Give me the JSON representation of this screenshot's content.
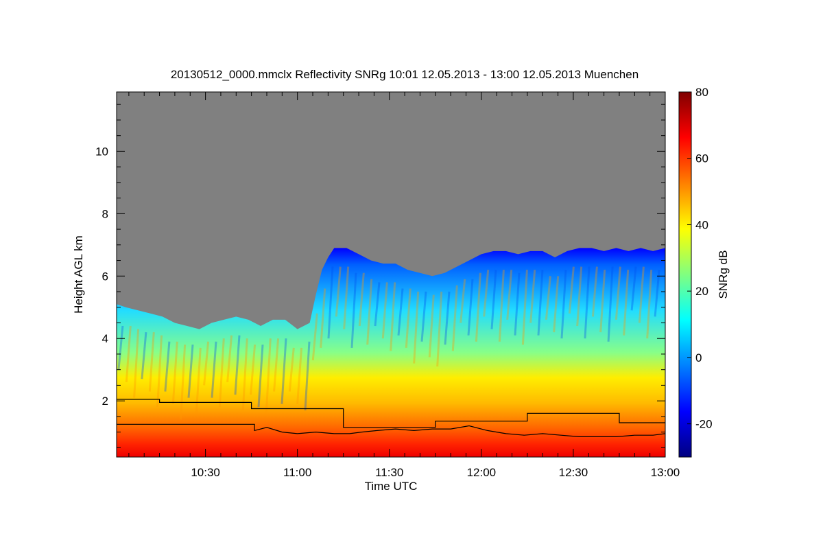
{
  "chart_data": {
    "type": "heatmap",
    "title": "20130512_0000.mmclx Reflectivity SNRg   10:01 12.05.2013 - 13:00 12.05.2013 Muenchen",
    "xlabel": "Time UTC",
    "ylabel": "Height AGL km",
    "colorbar_label": "SNRg dB",
    "x_range": [
      "10:01",
      "13:00"
    ],
    "xlim_minutes": [
      601,
      780
    ],
    "ylim": [
      0.2,
      11.9
    ],
    "x_ticks": [
      {
        "label": "10:30",
        "minutes": 630
      },
      {
        "label": "11:00",
        "minutes": 660
      },
      {
        "label": "11:30",
        "minutes": 690
      },
      {
        "label": "12:00",
        "minutes": 720
      },
      {
        "label": "12:30",
        "minutes": 750
      },
      {
        "label": "13:00",
        "minutes": 780
      }
    ],
    "y_ticks": [
      {
        "label": "2",
        "value": 2
      },
      {
        "label": "4",
        "value": 4
      },
      {
        "label": "6",
        "value": 6
      },
      {
        "label": "8",
        "value": 8
      },
      {
        "label": "10",
        "value": 10
      }
    ],
    "colorbar": {
      "range": [
        -30,
        80
      ],
      "ticks": [
        {
          "label": "-20",
          "value": -20
        },
        {
          "label": "0",
          "value": 0
        },
        {
          "label": "20",
          "value": 20
        },
        {
          "label": "40",
          "value": 40
        },
        {
          "label": "60",
          "value": 60
        },
        {
          "label": "80",
          "value": 80
        }
      ],
      "colors": [
        "#000080",
        "#0000ff",
        "#0080ff",
        "#00ffff",
        "#80ff80",
        "#ffff00",
        "#ff8000",
        "#ff0000",
        "#800000"
      ]
    },
    "no_signal_color": "#808080",
    "cloud_top_km": [
      [
        601,
        5.1
      ],
      [
        604,
        5.0
      ],
      [
        608,
        4.9
      ],
      [
        612,
        4.8
      ],
      [
        616,
        4.7
      ],
      [
        620,
        4.5
      ],
      [
        624,
        4.4
      ],
      [
        628,
        4.3
      ],
      [
        632,
        4.5
      ],
      [
        636,
        4.6
      ],
      [
        640,
        4.7
      ],
      [
        644,
        4.6
      ],
      [
        648,
        4.4
      ],
      [
        652,
        4.6
      ],
      [
        656,
        4.6
      ],
      [
        660,
        4.3
      ],
      [
        664,
        4.5
      ],
      [
        666,
        5.4
      ],
      [
        668,
        6.2
      ],
      [
        670,
        6.6
      ],
      [
        672,
        6.9
      ],
      [
        676,
        6.9
      ],
      [
        680,
        6.7
      ],
      [
        684,
        6.5
      ],
      [
        688,
        6.4
      ],
      [
        692,
        6.4
      ],
      [
        696,
        6.2
      ],
      [
        700,
        6.1
      ],
      [
        704,
        6.0
      ],
      [
        708,
        6.1
      ],
      [
        712,
        6.3
      ],
      [
        716,
        6.5
      ],
      [
        720,
        6.7
      ],
      [
        724,
        6.8
      ],
      [
        728,
        6.8
      ],
      [
        732,
        6.7
      ],
      [
        736,
        6.8
      ],
      [
        740,
        6.8
      ],
      [
        744,
        6.6
      ],
      [
        748,
        6.8
      ],
      [
        752,
        6.9
      ],
      [
        756,
        6.9
      ],
      [
        760,
        6.8
      ],
      [
        764,
        6.9
      ],
      [
        768,
        6.8
      ],
      [
        772,
        6.9
      ],
      [
        776,
        6.8
      ],
      [
        780,
        6.9
      ]
    ],
    "step_line_upper_km": [
      [
        601,
        2.05
      ],
      [
        615,
        2.05
      ],
      [
        615,
        1.95
      ],
      [
        645,
        1.95
      ],
      [
        645,
        1.75
      ],
      [
        675,
        1.75
      ],
      [
        675,
        1.15
      ],
      [
        705,
        1.15
      ],
      [
        705,
        1.35
      ],
      [
        735,
        1.35
      ],
      [
        735,
        1.6
      ],
      [
        765,
        1.6
      ],
      [
        765,
        1.3
      ],
      [
        780,
        1.3
      ]
    ],
    "step_line_lower_km": [
      [
        601,
        1.25
      ],
      [
        646,
        1.25
      ],
      [
        646,
        1.05
      ],
      [
        650,
        1.15
      ],
      [
        655,
        1.0
      ],
      [
        660,
        0.95
      ],
      [
        666,
        1.0
      ],
      [
        672,
        0.95
      ],
      [
        677,
        0.95
      ],
      [
        681,
        1.0
      ],
      [
        686,
        1.05
      ],
      [
        692,
        1.1
      ],
      [
        698,
        1.05
      ],
      [
        704,
        1.1
      ],
      [
        710,
        1.1
      ],
      [
        716,
        1.2
      ],
      [
        722,
        1.05
      ],
      [
        728,
        0.95
      ],
      [
        734,
        0.9
      ],
      [
        740,
        0.95
      ],
      [
        746,
        0.9
      ],
      [
        752,
        0.85
      ],
      [
        758,
        0.85
      ],
      [
        764,
        0.85
      ],
      [
        770,
        0.9
      ],
      [
        776,
        0.9
      ],
      [
        780,
        0.95
      ]
    ]
  }
}
